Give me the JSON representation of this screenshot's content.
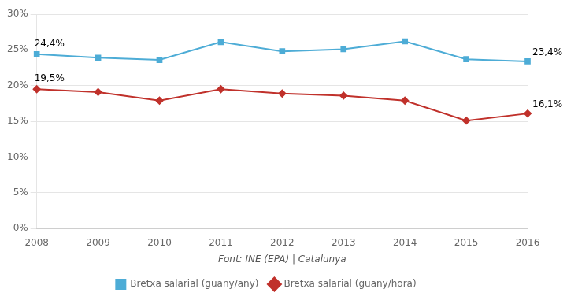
{
  "chart_data": {
    "type": "line",
    "categories": [
      "2008",
      "2009",
      "2010",
      "2011",
      "2012",
      "2013",
      "2014",
      "2015",
      "2016"
    ],
    "series": [
      {
        "name": "Bretxa salarial (guany/any)",
        "color": "#4dacd6",
        "marker": "square",
        "values": [
          24.4,
          23.9,
          23.6,
          26.1,
          24.8,
          25.1,
          26.2,
          23.7,
          23.4
        ]
      },
      {
        "name": "Bretxa salarial (guany/hora)",
        "color": "#c0312b",
        "marker": "diamond",
        "values": [
          19.5,
          19.1,
          17.9,
          19.5,
          18.9,
          18.6,
          17.9,
          15.1,
          16.1
        ]
      }
    ],
    "ylim": [
      0,
      30
    ],
    "yticks": [
      {
        "value": 0,
        "label": "0%"
      },
      {
        "value": 5,
        "label": "5%"
      },
      {
        "value": 10,
        "label": "10%"
      },
      {
        "value": 15,
        "label": "15%"
      },
      {
        "value": 20,
        "label": "20%"
      },
      {
        "value": 25,
        "label": "25%"
      },
      {
        "value": 30,
        "label": "30%"
      }
    ],
    "xlabel": "Font: INE (EPA) | Catalunya",
    "annotations": [
      {
        "text": "24,4%",
        "x": "2008",
        "y": 24.4
      },
      {
        "text": "23,4%",
        "x": "2016",
        "y": 23.4
      },
      {
        "text": "19,5%",
        "x": "2008",
        "y": 19.5
      },
      {
        "text": "16,1%",
        "x": "2016",
        "y": 16.1
      }
    ],
    "grid": true,
    "legend": "bottom"
  }
}
